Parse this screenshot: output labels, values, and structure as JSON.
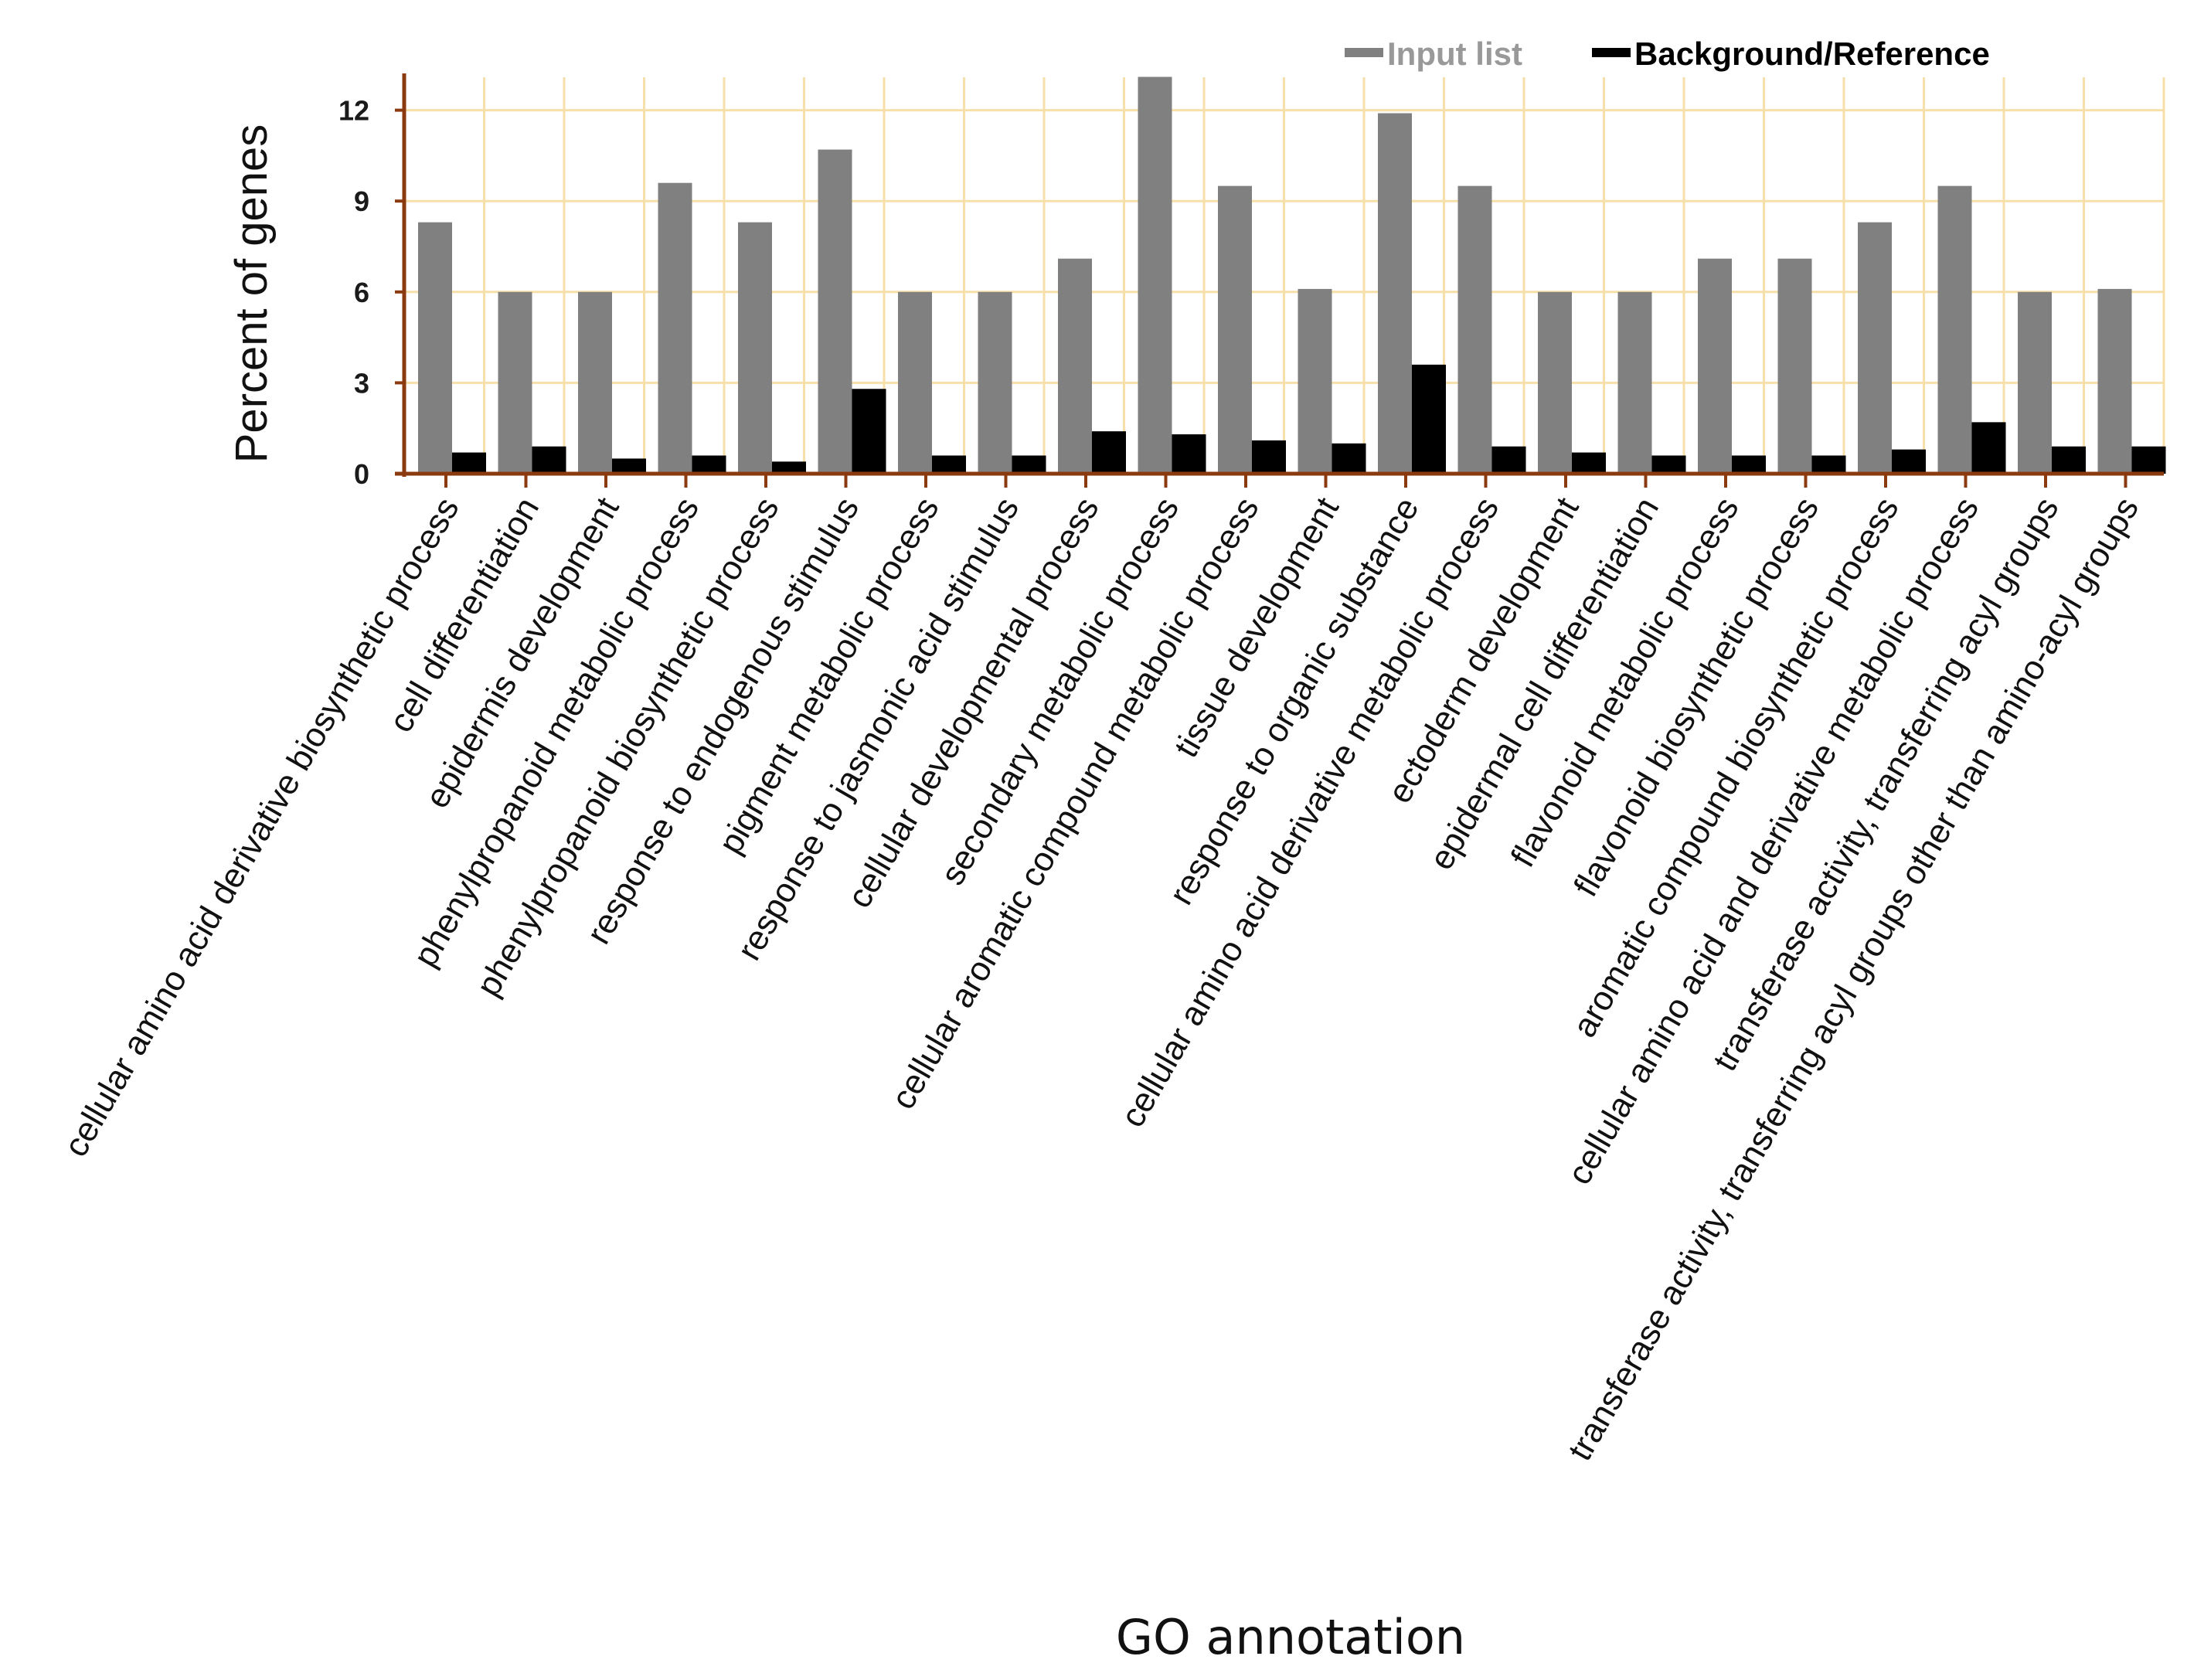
{
  "chart_data": {
    "type": "bar",
    "title": "",
    "xlabel": "GO annotation",
    "ylabel": "Percent of genes",
    "ylim": [
      0,
      13
    ],
    "yticks": [
      0,
      3,
      6,
      9,
      12
    ],
    "grid": true,
    "legend_position": "top-right",
    "categories": [
      "cellular amino acid derivative biosynthetic process",
      "cell differentiation",
      "epidermis development",
      "phenylpropanoid metabolic process",
      "phenylpropanoid biosynthetic process",
      "response to endogenous stimulus",
      "pigment metabolic process",
      "response to jasmonic acid stimulus",
      "cellular developmental process",
      "secondary metabolic process",
      "cellular aromatic compound metabolic process",
      "tissue development",
      "response to organic substance",
      "cellular amino acid derivative metabolic process",
      "ectoderm development",
      "epidermal cell differentiation",
      "flavonoid metabolic process",
      "flavonoid biosynthetic process",
      "aromatic compound biosynthetic process",
      "cellular amino acid and derivative metabolic process",
      "transferase activity, transferring acyl groups",
      "transferase activity, transferring acyl groups other than amino-acyl groups"
    ],
    "series": [
      {
        "name": "Input list",
        "color": "#808080",
        "values": [
          8.3,
          6.0,
          6.0,
          9.6,
          8.3,
          10.7,
          6.0,
          6.0,
          7.1,
          13.1,
          9.5,
          6.1,
          11.9,
          9.5,
          6.0,
          6.0,
          7.1,
          7.1,
          8.3,
          9.5,
          6.0,
          6.1
        ]
      },
      {
        "name": "Background/Reference",
        "color": "#000000",
        "values": [
          0.7,
          0.9,
          0.5,
          0.6,
          0.4,
          2.8,
          0.6,
          0.6,
          1.4,
          1.3,
          1.1,
          1.0,
          3.6,
          0.9,
          0.7,
          0.6,
          0.6,
          0.6,
          0.8,
          1.7,
          0.9,
          0.9
        ]
      }
    ],
    "legend_label_colors": [
      "#999999",
      "#000000"
    ]
  }
}
